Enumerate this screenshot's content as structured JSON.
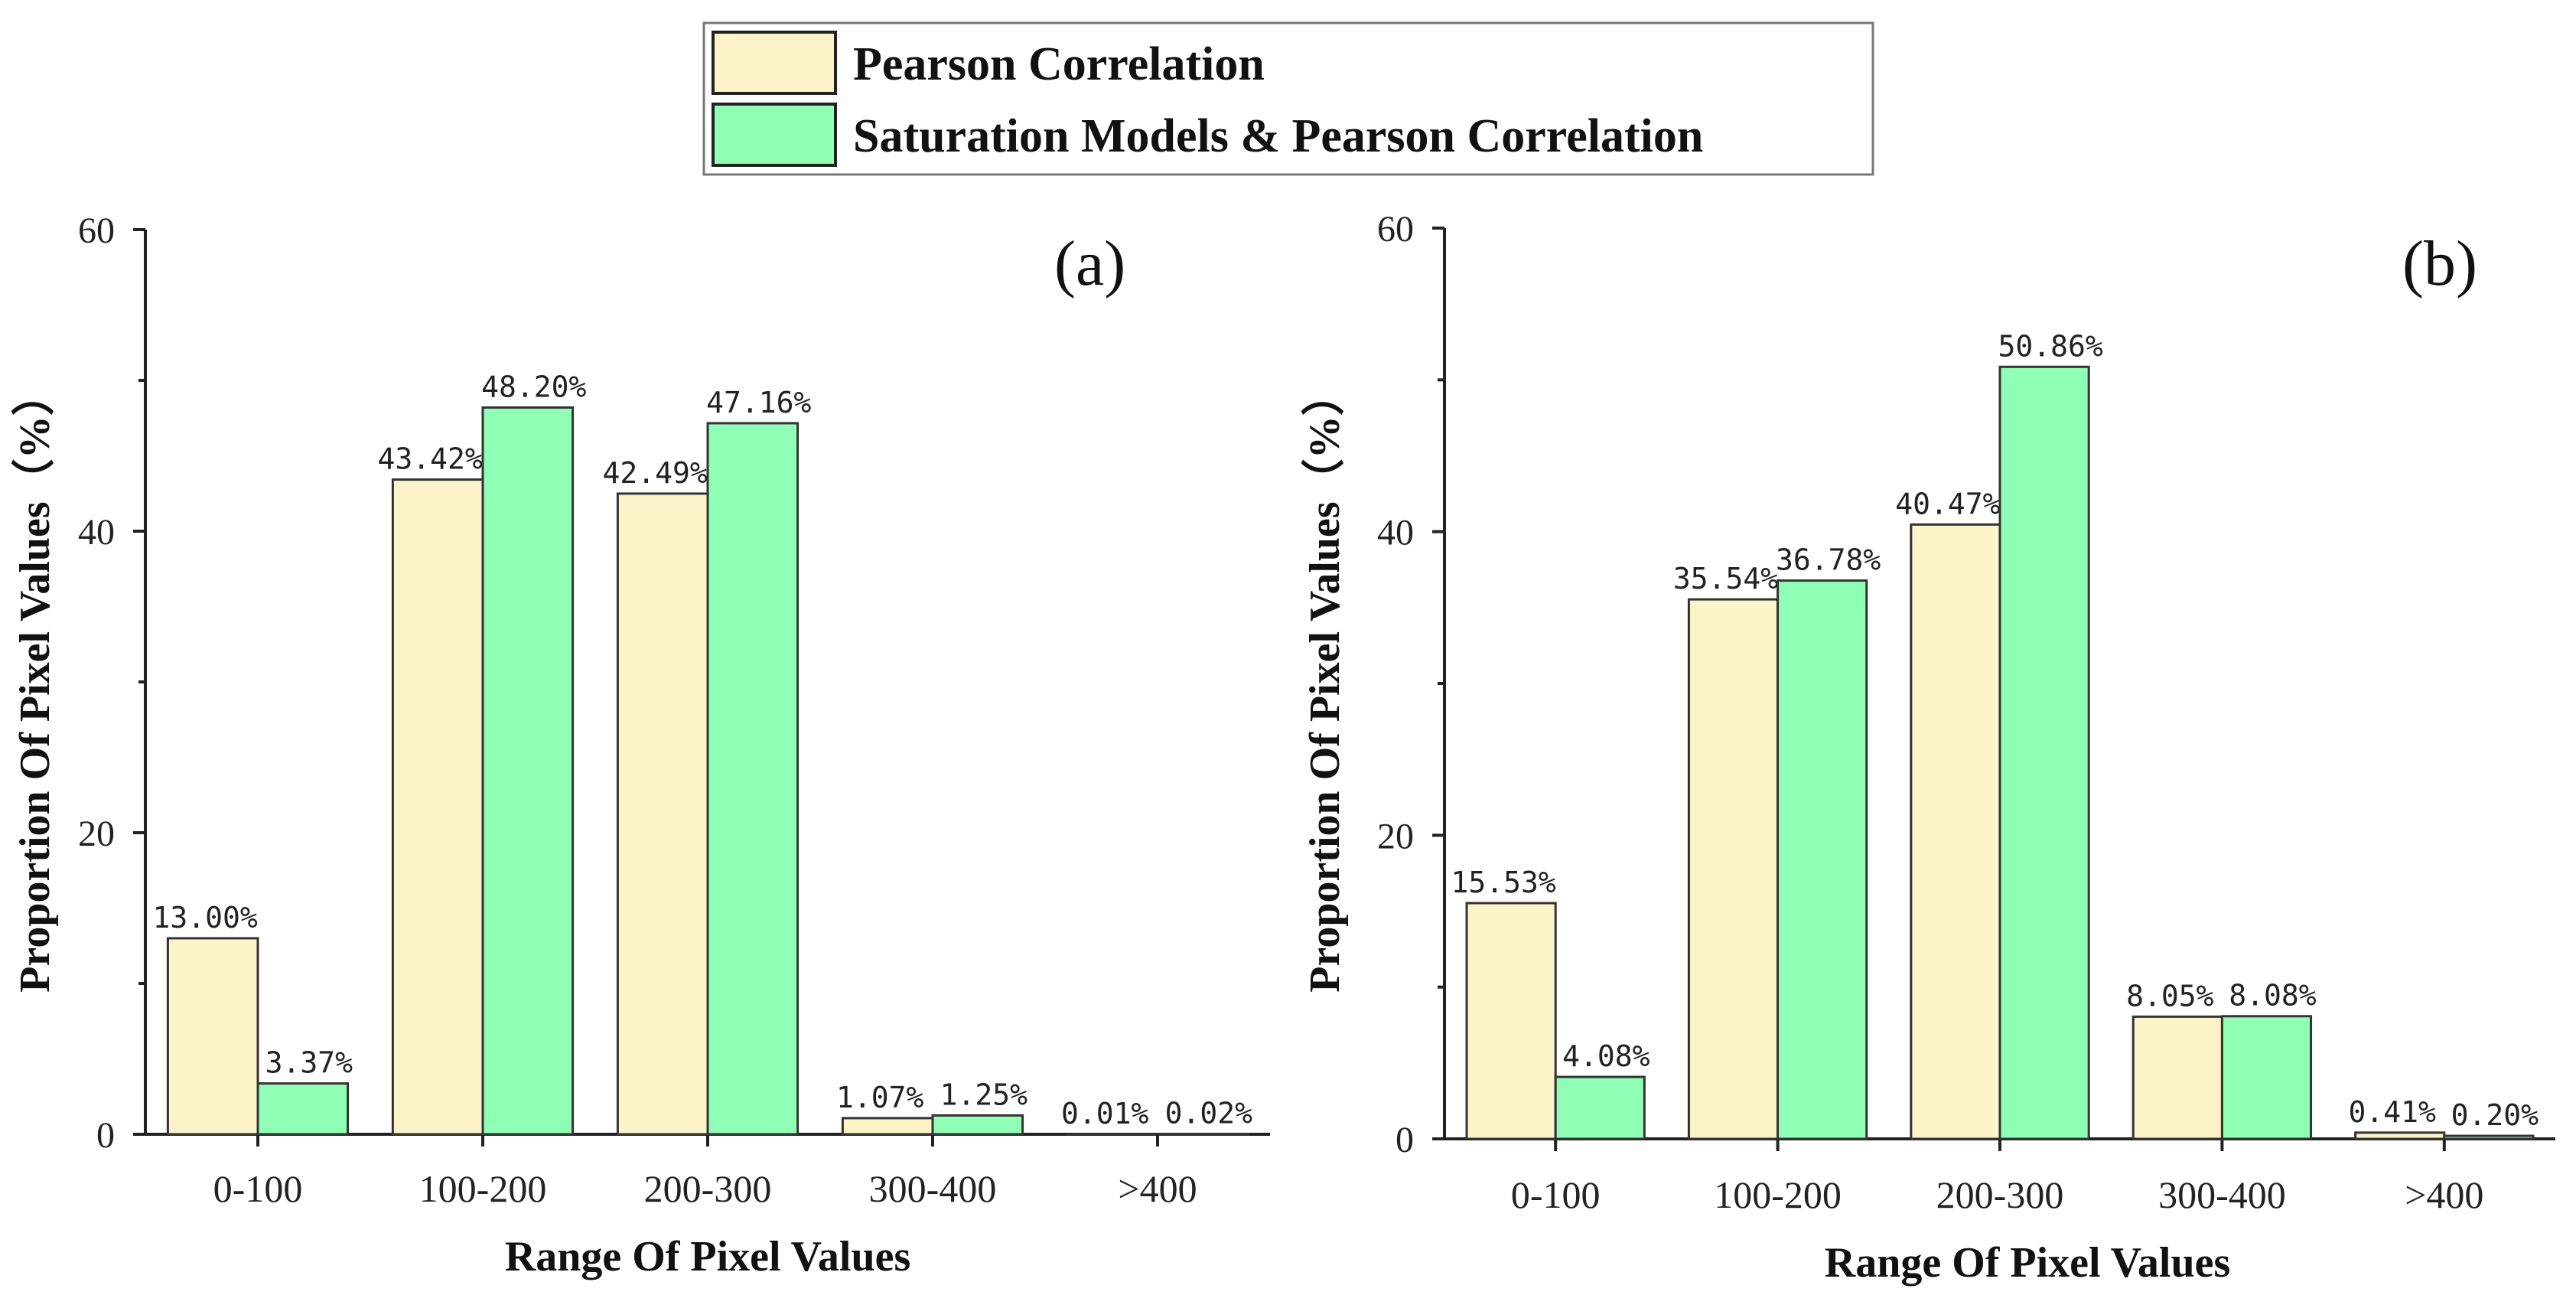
{
  "legend": {
    "placement": "top-center",
    "items": [
      {
        "label": "Pearson Correlation",
        "color": "#fdf3c8"
      },
      {
        "label": "Saturation Models & Pearson Correlation",
        "color": "#8effb4"
      }
    ]
  },
  "chart_data": [
    {
      "type": "bar",
      "panel_label": "(a)",
      "categories": [
        "0-100",
        "100-200",
        "200-300",
        "300-400",
        ">400"
      ],
      "series": [
        {
          "name": "Pearson Correlation",
          "values": [
            13.0,
            43.42,
            42.49,
            1.07,
            0.01
          ],
          "labels": [
            "13.00%",
            "43.42%",
            "42.49%",
            "1.07%",
            "0.01%"
          ]
        },
        {
          "name": "Saturation Models & Pearson Correlation",
          "values": [
            3.37,
            48.2,
            47.16,
            1.25,
            0.02
          ],
          "labels": [
            "3.37%",
            "48.20%",
            "47.16%",
            "1.25%",
            "0.02%"
          ]
        }
      ],
      "xlabel": "Range Of Pixel Values",
      "ylabel": "Proportion Of Pixel Values（%）",
      "ylim": [
        0,
        60
      ],
      "yticks": [
        0,
        20,
        40,
        60
      ],
      "grid": false
    },
    {
      "type": "bar",
      "panel_label": "(b)",
      "categories": [
        "0-100",
        "100-200",
        "200-300",
        "300-400",
        ">400"
      ],
      "series": [
        {
          "name": "Pearson Correlation",
          "values": [
            15.53,
            35.54,
            40.47,
            8.05,
            0.41
          ],
          "labels": [
            "15.53%",
            "35.54%",
            "40.47%",
            "8.05%",
            "0.41%"
          ]
        },
        {
          "name": "Saturation Models & Pearson Correlation",
          "values": [
            4.08,
            36.78,
            50.86,
            8.08,
            0.2
          ],
          "labels": [
            "4.08%",
            "36.78%",
            "50.86%",
            "8.08%",
            "0.20%"
          ]
        }
      ],
      "xlabel": "Range Of Pixel Values",
      "ylabel": "Proportion Of Pixel Values（%）",
      "ylim": [
        0,
        60
      ],
      "yticks": [
        0,
        20,
        40,
        60
      ],
      "grid": false
    }
  ]
}
